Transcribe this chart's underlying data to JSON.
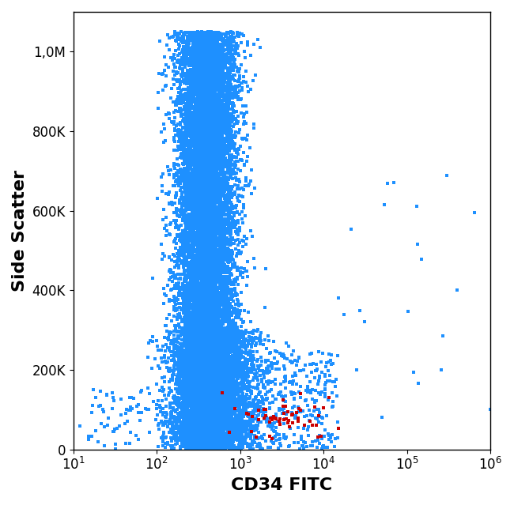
{
  "xlabel": "CD34 FITC",
  "ylabel": "Side Scatter",
  "xlabel_fontsize": 16,
  "ylabel_fontsize": 16,
  "xlabel_fontweight": "bold",
  "ylabel_fontweight": "bold",
  "tick_fontsize": 12,
  "xlim": [
    10,
    1000000
  ],
  "ylim": [
    0,
    1100000
  ],
  "blue_color": "#1e90ff",
  "red_color": "#cc0000",
  "background_color": "#ffffff",
  "yticks": [
    0,
    200000,
    400000,
    600000,
    800000,
    1000000
  ],
  "ytick_labels": [
    "0",
    "200K",
    "400K",
    "600K",
    "800K",
    "1,0M"
  ],
  "seed": 42
}
